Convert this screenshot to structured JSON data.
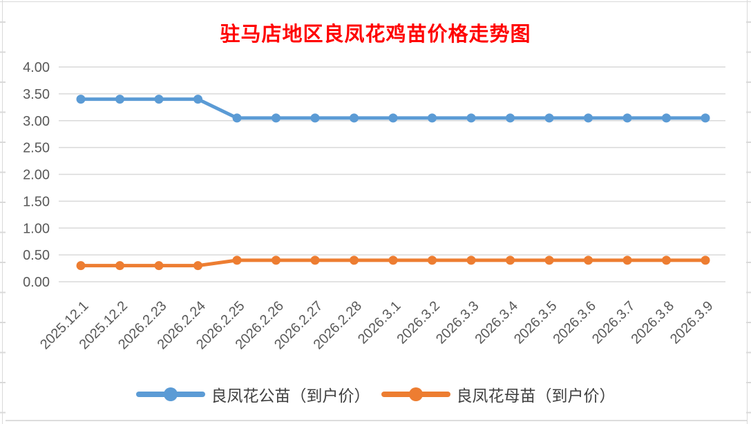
{
  "title": {
    "text": "驻马店地区良凤花鸡苗价格走势图",
    "color": "#FF0000"
  },
  "chart_data": {
    "type": "line",
    "title": "驻马店地区良凤花鸡苗价格走势图",
    "categories": [
      "2025.12.1",
      "2025.12.2",
      "2026.2.23",
      "2026.2.24",
      "2026.2.25",
      "2026.2.26",
      "2026.2.27",
      "2026.2.28",
      "2026.3.1",
      "2026.3.2",
      "2026.3.3",
      "2026.3.4",
      "2026.3.5",
      "2026.3.6",
      "2026.3.7",
      "2026.3.8",
      "2026.3.9"
    ],
    "series": [
      {
        "name": "良凤花公苗（到户价）",
        "color": "#5B9BD5",
        "values": [
          3.4,
          3.4,
          3.4,
          3.4,
          3.05,
          3.05,
          3.05,
          3.05,
          3.05,
          3.05,
          3.05,
          3.05,
          3.05,
          3.05,
          3.05,
          3.05,
          3.05
        ]
      },
      {
        "name": "良凤花母苗（到户价）",
        "color": "#ED7D31",
        "values": [
          0.3,
          0.3,
          0.3,
          0.3,
          0.4,
          0.4,
          0.4,
          0.4,
          0.4,
          0.4,
          0.4,
          0.4,
          0.4,
          0.4,
          0.4,
          0.4,
          0.4
        ]
      }
    ],
    "ylim": [
      0,
      4.0
    ],
    "ytick_step": 0.5,
    "ytick_labels": [
      "0.00",
      "0.50",
      "1.00",
      "1.50",
      "2.00",
      "2.50",
      "3.00",
      "3.50",
      "4.00"
    ],
    "xlabel": "",
    "ylabel": "",
    "grid": true,
    "gridline_color": "#D9D9D9",
    "axis_text_color": "#595959",
    "legend_position": "bottom"
  }
}
